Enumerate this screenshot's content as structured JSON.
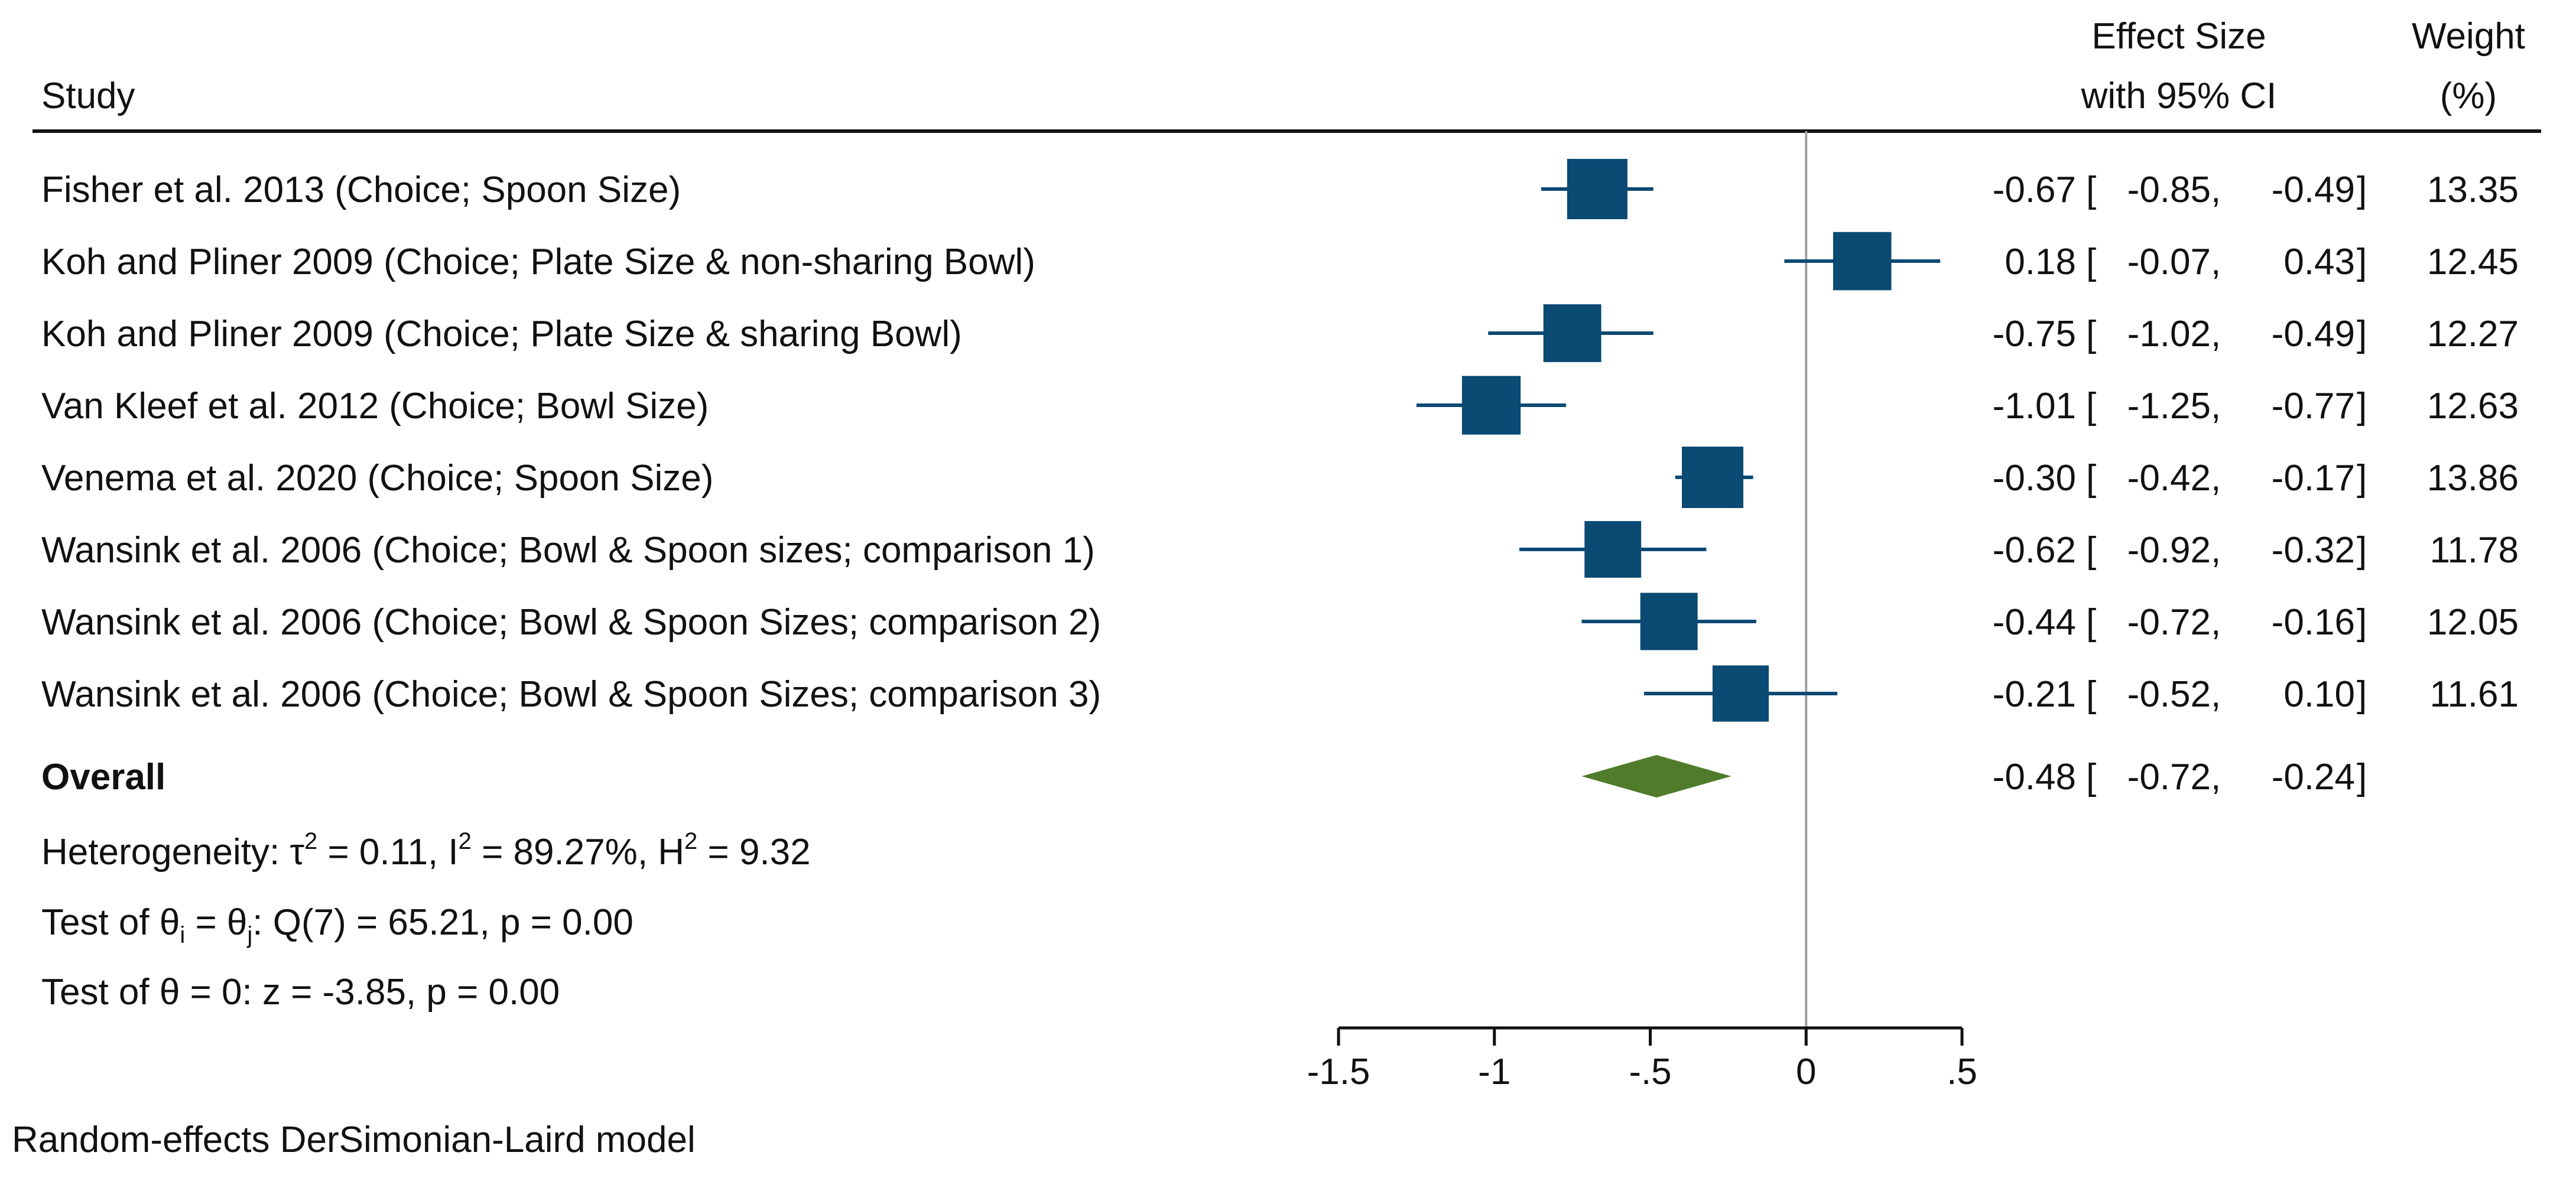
{
  "chart_data": {
    "type": "forest",
    "headers": {
      "study": "Study",
      "effect_line1": "Effect Size",
      "effect_line2": "with 95% CI",
      "weight_line1": "Weight",
      "weight_line2": "(%)"
    },
    "studies": [
      {
        "label": "Fisher et al. 2013 (Choice; Spoon Size)",
        "es": -0.67,
        "lo": -0.85,
        "hi": -0.49,
        "es_text": "-0.67",
        "lo_text": "-0.85",
        "hi_text": "-0.49",
        "weight": 13.35,
        "weight_text": "13.35"
      },
      {
        "label": "Koh and Pliner 2009 (Choice; Plate Size & non-sharing Bowl)",
        "es": 0.18,
        "lo": -0.07,
        "hi": 0.43,
        "es_text": "0.18",
        "lo_text": "-0.07",
        "hi_text": "0.43",
        "weight": 12.45,
        "weight_text": "12.45"
      },
      {
        "label": "Koh and Pliner 2009 (Choice; Plate Size & sharing Bowl)",
        "es": -0.75,
        "lo": -1.02,
        "hi": -0.49,
        "es_text": "-0.75",
        "lo_text": "-1.02",
        "hi_text": "-0.49",
        "weight": 12.27,
        "weight_text": "12.27"
      },
      {
        "label": "Van Kleef et al. 2012 (Choice; Bowl Size)",
        "es": -1.01,
        "lo": -1.25,
        "hi": -0.77,
        "es_text": "-1.01",
        "lo_text": "-1.25",
        "hi_text": "-0.77",
        "weight": 12.63,
        "weight_text": "12.63"
      },
      {
        "label": "Venema et al. 2020 (Choice; Spoon Size)",
        "es": -0.3,
        "lo": -0.42,
        "hi": -0.17,
        "es_text": "-0.30",
        "lo_text": "-0.42",
        "hi_text": "-0.17",
        "weight": 13.86,
        "weight_text": "13.86"
      },
      {
        "label": "Wansink et al. 2006 (Choice; Bowl & Spoon sizes; comparison 1)",
        "es": -0.62,
        "lo": -0.92,
        "hi": -0.32,
        "es_text": "-0.62",
        "lo_text": "-0.92",
        "hi_text": "-0.32",
        "weight": 11.78,
        "weight_text": "11.78"
      },
      {
        "label": "Wansink et al. 2006 (Choice; Bowl & Spoon Sizes; comparison 2)",
        "es": -0.44,
        "lo": -0.72,
        "hi": -0.16,
        "es_text": "-0.44",
        "lo_text": "-0.72",
        "hi_text": "-0.16",
        "weight": 12.05,
        "weight_text": "12.05"
      },
      {
        "label": "Wansink et al. 2006 (Choice; Bowl & Spoon Sizes; comparison 3)",
        "es": -0.21,
        "lo": -0.52,
        "hi": 0.1,
        "es_text": "-0.21",
        "lo_text": "-0.52",
        "hi_text": "0.10",
        "weight": 11.61,
        "weight_text": "11.61"
      }
    ],
    "overall": {
      "label": "Overall",
      "es": -0.48,
      "lo": -0.72,
      "hi": -0.24,
      "es_text": "-0.48",
      "lo_text": "-0.72",
      "hi_text": "-0.24"
    },
    "stats": {
      "heterogeneity": {
        "prefix": "Heterogeneity: ",
        "tau": "τ",
        "sup1": "2",
        "mid1": " = 0.11, I",
        "sup2": "2",
        "mid2": " = 89.27%, H",
        "sup3": "2",
        "tail": " = 9.32"
      },
      "test1": {
        "prefix": "Test of ",
        "theta1": "θ",
        "sub1": "i",
        "mid": " = ",
        "theta2": "θ",
        "sub2": "j",
        "tail": ": Q(7) = 65.21, p = 0.00"
      },
      "test2": {
        "prefix": "Test of ",
        "theta": "θ",
        "tail": " = 0: z = -3.85, p = 0.00"
      }
    },
    "x_axis": {
      "xlim": [
        -1.5,
        0.5
      ],
      "ticks": [
        -1.5,
        -1,
        -0.5,
        0,
        0.5
      ],
      "tick_labels": [
        "-1.5",
        "-1",
        "-.5",
        "0",
        ".5"
      ],
      "reference_line": 0
    },
    "footnote": "Random-effects DerSimonian-Laird model",
    "colors": {
      "marker": "#0b4a73",
      "diamond": "#4f7b2a",
      "text": "#111111",
      "refline": "#a0a0a0",
      "rule": "#111111"
    }
  }
}
